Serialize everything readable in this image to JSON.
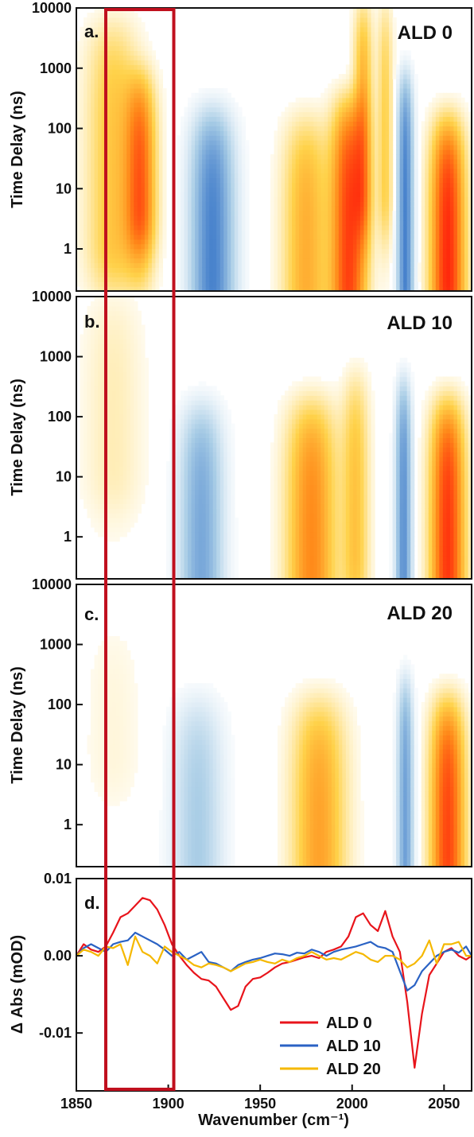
{
  "chart_data": [
    {
      "type": "heatmap",
      "panel_label": "a.",
      "title": "ALD 0",
      "ylabel": "Time Delay (ns)",
      "yscale": "log",
      "xlim": [
        1850,
        2065
      ],
      "ylim": [
        0.2,
        10000
      ],
      "y_ticks": [
        "1",
        "10",
        "100",
        "1000",
        "10000"
      ],
      "colors": {
        "positive": "#ff1a0a",
        "negative": "#2a6bc4"
      },
      "bands": [
        {
          "center": 1870,
          "width": 14,
          "peak": 0.35,
          "t_peak": 40,
          "t_rise": 0.3,
          "t_decay": 5000
        },
        {
          "center": 1885,
          "width": 8,
          "peak": 0.7,
          "t_peak": 30,
          "t_rise": 1,
          "t_decay": 600
        },
        {
          "center": 1924,
          "width": 11,
          "peak": -0.85,
          "t_peak": 5,
          "t_rise": 0.05,
          "t_decay": 150
        },
        {
          "center": 1975,
          "width": 12,
          "peak": 0.45,
          "t_peak": 3,
          "t_rise": 0.05,
          "t_decay": 120
        },
        {
          "center": 1998,
          "width": 9,
          "peak": 0.85,
          "t_peak": 5,
          "t_rise": 0.05,
          "t_decay": 250
        },
        {
          "center": 2006,
          "width": 5,
          "peak": 0.45,
          "t_peak": 300,
          "t_rise": 2,
          "t_decay": 10000
        },
        {
          "center": 2018,
          "width": 4,
          "peak": 0.3,
          "t_peak": 400,
          "t_rise": 2,
          "t_decay": 10000
        },
        {
          "center": 2029,
          "width": 4,
          "peak": -0.85,
          "t_peak": 8,
          "t_rise": 0.05,
          "t_decay": 600
        },
        {
          "center": 2052,
          "width": 9,
          "peak": 0.95,
          "t_peak": 3,
          "t_rise": 0.05,
          "t_decay": 120
        }
      ]
    },
    {
      "type": "heatmap",
      "panel_label": "b.",
      "title": "ALD 10",
      "ylabel": "Time Delay (ns)",
      "yscale": "log",
      "xlim": [
        1850,
        2065
      ],
      "ylim": [
        0.2,
        10000
      ],
      "y_ticks": [
        "1",
        "10",
        "100",
        "1000",
        "10000"
      ],
      "colors": {
        "positive": "#ff1a0a",
        "negative": "#2a6bc4"
      },
      "bands": [
        {
          "center": 1870,
          "width": 16,
          "peak": 0.12,
          "t_peak": 300,
          "t_rise": 3,
          "t_decay": 10000
        },
        {
          "center": 1918,
          "width": 11,
          "peak": -0.6,
          "t_peak": 3,
          "t_rise": 0.05,
          "t_decay": 120
        },
        {
          "center": 1978,
          "width": 13,
          "peak": 0.6,
          "t_peak": 3,
          "t_rise": 0.05,
          "t_decay": 150
        },
        {
          "center": 2002,
          "width": 7,
          "peak": 0.35,
          "t_peak": 20,
          "t_rise": 0.1,
          "t_decay": 400
        },
        {
          "center": 2028,
          "width": 4,
          "peak": -0.75,
          "t_peak": 5,
          "t_rise": 0.05,
          "t_decay": 300
        },
        {
          "center": 2052,
          "width": 9,
          "peak": 0.9,
          "t_peak": 3,
          "t_rise": 0.05,
          "t_decay": 150
        }
      ]
    },
    {
      "type": "heatmap",
      "panel_label": "c.",
      "title": "ALD 20",
      "ylabel": "Time Delay (ns)",
      "yscale": "log",
      "xlim": [
        1850,
        2065
      ],
      "ylim": [
        0.2,
        10000
      ],
      "y_ticks": [
        "1",
        "10",
        "100",
        "1000",
        "10000"
      ],
      "colors": {
        "positive": "#ff1a0a",
        "negative": "#2a6bc4"
      },
      "bands": [
        {
          "center": 1870,
          "width": 16,
          "peak": 0.06,
          "t_peak": 100,
          "t_rise": 3,
          "t_decay": 2000
        },
        {
          "center": 1916,
          "width": 13,
          "peak": -0.35,
          "t_peak": 3,
          "t_rise": 0.05,
          "t_decay": 100
        },
        {
          "center": 1982,
          "width": 14,
          "peak": 0.5,
          "t_peak": 3,
          "t_rise": 0.05,
          "t_decay": 100
        },
        {
          "center": 2029,
          "width": 4,
          "peak": -0.65,
          "t_peak": 3,
          "t_rise": 0.05,
          "t_decay": 200
        },
        {
          "center": 2052,
          "width": 9,
          "peak": 0.85,
          "t_peak": 3,
          "t_rise": 0.05,
          "t_decay": 100
        }
      ]
    },
    {
      "type": "line",
      "panel_label": "d.",
      "xlabel": "Wavenumber (cm⁻¹)",
      "ylabel": "Δ Abs (mOD)",
      "xlim": [
        1850,
        2065
      ],
      "ylim": [
        -0.0175,
        0.01
      ],
      "x_ticks": [
        "1850",
        "1900",
        "1950",
        "2000",
        "2050"
      ],
      "y_ticks": [
        "-0.01",
        "0.00",
        "0.01"
      ],
      "x": [
        1850,
        1854,
        1858,
        1862,
        1866,
        1870,
        1874,
        1878,
        1882,
        1886,
        1890,
        1894,
        1898,
        1902,
        1906,
        1910,
        1914,
        1918,
        1922,
        1926,
        1930,
        1934,
        1938,
        1942,
        1946,
        1950,
        1954,
        1958,
        1962,
        1966,
        1970,
        1974,
        1978,
        1982,
        1986,
        1990,
        1994,
        1998,
        2002,
        2006,
        2010,
        2014,
        2018,
        2022,
        2026,
        2030,
        2034,
        2038,
        2042,
        2046,
        2050,
        2054,
        2058,
        2062,
        2065
      ],
      "series": [
        {
          "name": "ALD 0",
          "color": "#e8141b",
          "values": [
            0.0,
            0.0015,
            0.0008,
            0.0005,
            0.0012,
            0.003,
            0.005,
            0.0055,
            0.0065,
            0.0075,
            0.0072,
            0.006,
            0.004,
            0.0015,
            0.0,
            -0.0012,
            -0.0022,
            -0.003,
            -0.0032,
            -0.004,
            -0.0055,
            -0.007,
            -0.0065,
            -0.004,
            -0.003,
            -0.0028,
            -0.0022,
            -0.0015,
            -0.001,
            -0.0008,
            -0.0005,
            -0.0002,
            0.0,
            -0.0003,
            0.0005,
            0.0008,
            0.0012,
            0.0025,
            0.005,
            0.0055,
            0.004,
            0.0032,
            0.0058,
            0.0025,
            0.0005,
            -0.006,
            -0.0145,
            -0.0075,
            -0.0025,
            -0.001,
            0.0005,
            0.001,
            0.0,
            -0.0005,
            0.0
          ]
        },
        {
          "name": "ALD 10",
          "color": "#2a62c4",
          "values": [
            0.0,
            0.001,
            0.0015,
            0.001,
            0.0005,
            0.0015,
            0.0018,
            0.002,
            0.003,
            0.0025,
            0.002,
            0.0015,
            0.0008,
            0.0,
            0.0005,
            -0.0005,
            0.0,
            0.0005,
            -0.0008,
            -0.001,
            -0.0015,
            -0.002,
            -0.0012,
            -0.0008,
            -0.0005,
            -0.0003,
            0.0,
            0.0003,
            0.0002,
            0.0,
            0.0004,
            0.0003,
            0.0008,
            0.0005,
            0.0,
            0.0005,
            0.0008,
            0.001,
            0.0012,
            0.0015,
            0.0018,
            0.0012,
            0.001,
            0.0005,
            -0.002,
            -0.0045,
            -0.0038,
            -0.002,
            -0.001,
            0.0,
            0.0005,
            0.0008,
            0.0004,
            0.0012,
            0.0
          ]
        },
        {
          "name": "ALD 20",
          "color": "#f5b800",
          "values": [
            0.0,
            0.0008,
            0.0005,
            0.0,
            0.0012,
            0.001,
            0.0015,
            -0.0012,
            0.0025,
            0.0005,
            0.0,
            -0.001,
            0.0012,
            0.0005,
            0.0,
            -0.0005,
            -0.0012,
            -0.0015,
            -0.001,
            -0.0012,
            -0.0015,
            -0.002,
            -0.0015,
            -0.001,
            -0.0008,
            -0.0005,
            -0.0008,
            -0.001,
            -0.0005,
            -0.0008,
            -0.0003,
            0.0,
            0.0005,
            0.0,
            -0.0005,
            -0.0003,
            -0.0005,
            0.0,
            0.0005,
            0.0002,
            -0.0005,
            -0.0008,
            0.0,
            0.0,
            -0.0005,
            -0.0015,
            -0.001,
            0.0,
            0.002,
            -0.001,
            0.0015,
            0.0015,
            0.0018,
            0.0,
            0.0
          ]
        }
      ],
      "legend": {
        "placement": "bottom-center",
        "labels": [
          "ALD 0",
          "ALD 10",
          "ALD 20"
        ]
      }
    }
  ],
  "highlight_box": {
    "x_range": [
      1866,
      1903
    ],
    "color": "#c0101e"
  }
}
